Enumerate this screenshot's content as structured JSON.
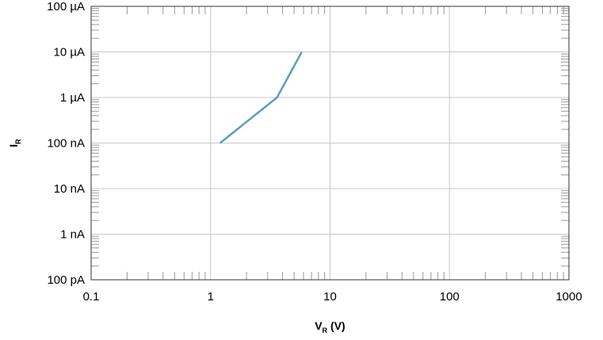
{
  "chart_data": {
    "type": "line",
    "title": "",
    "xlabel": "V",
    "xlabel_subscript": "R",
    "xlabel_unit": " (V)",
    "ylabel": "I",
    "ylabel_subscript": "R",
    "x_scale": "log",
    "y_scale": "log",
    "xlim": [
      0.1,
      1000
    ],
    "ylim": [
      1e-10,
      0.0001
    ],
    "x_ticks": [
      {
        "value": 0.1,
        "label": "0.1"
      },
      {
        "value": 1,
        "label": "1"
      },
      {
        "value": 10,
        "label": "10"
      },
      {
        "value": 100,
        "label": "100"
      },
      {
        "value": 1000,
        "label": "1000"
      }
    ],
    "y_ticks": [
      {
        "value": 0.0001,
        "label": "100 µA"
      },
      {
        "value": 1e-05,
        "label": "10 µA"
      },
      {
        "value": 1e-06,
        "label": "1 µA"
      },
      {
        "value": 1e-07,
        "label": "100 nA"
      },
      {
        "value": 1e-08,
        "label": "10 nA"
      },
      {
        "value": 1e-09,
        "label": "1 nA"
      },
      {
        "value": 1e-10,
        "label": "100 pA"
      }
    ],
    "grid": true,
    "series": [
      {
        "color": "#5b9fbd",
        "points": [
          {
            "x": 1.2,
            "y": 1e-07
          },
          {
            "x": 3.6,
            "y": 1e-06
          },
          {
            "x": 5.8,
            "y": 1e-05
          }
        ]
      }
    ]
  }
}
